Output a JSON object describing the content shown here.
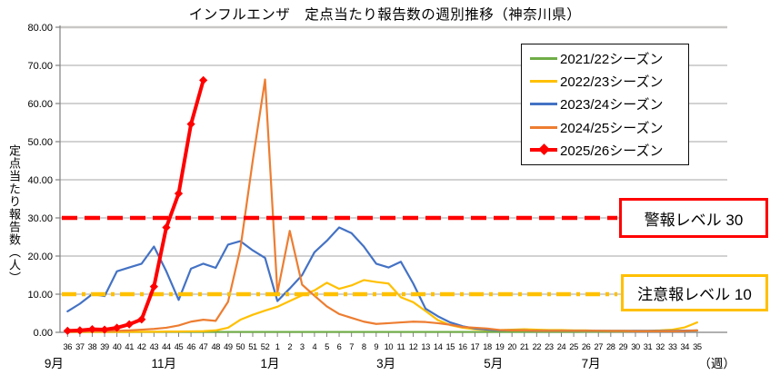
{
  "title": "インフルエンザ　定点当たり報告数の週別推移（神奈川県）",
  "y_axis_label": "定点当たり報告数（人）",
  "chart_data": {
    "type": "line",
    "title": "インフルエンザ　定点当たり報告数の週別推移（神奈川県）",
    "ylabel": "定点当たり報告数（人）",
    "xlabel": "（週）",
    "ylim": [
      0,
      80
    ],
    "y_tick_step": 10,
    "grid": "horizontal",
    "legend_position": "upper right",
    "y_tick_labels": [
      "0.00",
      "10.00",
      "20.00",
      "30.00",
      "40.00",
      "50.00",
      "60.00",
      "70.00",
      "80.00"
    ],
    "x_tick_labels": [
      "36",
      "37",
      "38",
      "39",
      "40",
      "41",
      "42",
      "43",
      "44",
      "45",
      "46",
      "47",
      "48",
      "49",
      "50",
      "51",
      "52",
      "1",
      "2",
      "3",
      "4",
      "5",
      "6",
      "7",
      "8",
      "9",
      "10",
      "11",
      "12",
      "13",
      "14",
      "15",
      "16",
      "17",
      "18",
      "19",
      "20",
      "21",
      "22",
      "23",
      "24",
      "25",
      "26",
      "27",
      "28",
      "29",
      "30",
      "31",
      "32",
      "33",
      "34",
      "35"
    ],
    "months": [
      {
        "label": "9月",
        "week_index": -1.1
      },
      {
        "label": "11月",
        "week_index": 7.8
      },
      {
        "label": "1月",
        "week_index": 16.4
      },
      {
        "label": "3月",
        "week_index": 25.8
      },
      {
        "label": "5月",
        "week_index": 34.5
      },
      {
        "label": "7月",
        "week_index": 42.4
      },
      {
        "label": "（週）",
        "week_index": 52.6
      }
    ],
    "series": [
      {
        "name": "2021/22シーズン",
        "color": "#70AD47",
        "marker": "none",
        "line_width": 2.2,
        "values": [
          0.1,
          0.1,
          0.1,
          0.1,
          0.1,
          0.1,
          0.1,
          0.1,
          0.1,
          0.1,
          0.1,
          0.1,
          0.1,
          0.1,
          0.1,
          0.1,
          0.1,
          0.1,
          0.1,
          0.1,
          0.1,
          0.1,
          0.1,
          0.1,
          0.1,
          0.1,
          0.1,
          0.1,
          0.1,
          0.1,
          0.1,
          0.1,
          0.1,
          0.1,
          0.1,
          0.1,
          0.1,
          0.1,
          0.1,
          0.1,
          0.1,
          0.1,
          0.15,
          0.15,
          0.2,
          0.2,
          0.25,
          0.3,
          0.3,
          0.35,
          0.4,
          0.45
        ]
      },
      {
        "name": "2022/23シーズン",
        "color": "#FFC000",
        "marker": "none",
        "line_width": 2.2,
        "values": [
          0.1,
          0.1,
          0.1,
          0.1,
          0.1,
          0.1,
          0.15,
          0.15,
          0.2,
          0.2,
          0.25,
          0.3,
          0.5,
          1.2,
          3.3,
          4.6,
          5.7,
          6.7,
          8.2,
          9.7,
          11,
          13,
          11.4,
          12.3,
          13.7,
          13.2,
          12.8,
          9.2,
          7.9,
          5.6,
          3.2,
          1.9,
          1.2,
          0.8,
          0.6,
          0.6,
          0.7,
          0.8,
          0.7,
          0.6,
          0.6,
          0.5,
          0.5,
          0.4,
          0.4,
          0.4,
          0.4,
          0.4,
          0.5,
          0.7,
          1.3,
          2.6
        ]
      },
      {
        "name": "2023/24シーズン",
        "color": "#4472C4",
        "marker": "none",
        "line_width": 2.2,
        "values": [
          5.5,
          7.5,
          10,
          9.5,
          16,
          17,
          18,
          22.5,
          16,
          8.5,
          16.7,
          18,
          16.9,
          23,
          23.9,
          21.5,
          19.5,
          8.2,
          11.5,
          15,
          21,
          24,
          27.5,
          26,
          22.5,
          18,
          17,
          18.5,
          12.8,
          6.2,
          4.2,
          2.6,
          1.6,
          1,
          0.7,
          0.5,
          0.5,
          0.5,
          0.4,
          0.4,
          0.4,
          0.4,
          0.4,
          0.4,
          0.4,
          0.4,
          0.4,
          0.4,
          0.4,
          0.4,
          0.45,
          0.5
        ]
      },
      {
        "name": "2024/25シーズン",
        "color": "#ED7D31",
        "marker": "none",
        "line_width": 2.2,
        "values": [
          0.2,
          0.2,
          0.3,
          0.3,
          0.4,
          0.5,
          0.7,
          0.9,
          1.2,
          1.8,
          2.8,
          3.3,
          3,
          8,
          22,
          45,
          66.3,
          10.4,
          26.6,
          12.5,
          9.6,
          6.8,
          4.8,
          3.8,
          2.8,
          2.2,
          2.4,
          2.6,
          2.8,
          2.7,
          2.4,
          2,
          1.4,
          1.2,
          1,
          0.6,
          0.5,
          0.5,
          0.4,
          0.4,
          0.4,
          0.4,
          0.4,
          0.4,
          0.35,
          0.35,
          0.3,
          0.3,
          0.3,
          0.3,
          0.35,
          0.5
        ]
      },
      {
        "name": "2025/26シーズン",
        "color": "#FF0000",
        "marker": "diamond",
        "line_width": 4,
        "values": [
          0.4,
          0.5,
          0.8,
          0.7,
          1.2,
          2.1,
          3.4,
          12,
          27.5,
          36.4,
          54.6,
          66.1
        ]
      }
    ],
    "reference_lines": [
      {
        "label": "警報レベル 30",
        "value": 30,
        "color": "#FF0000",
        "style": "dashed"
      },
      {
        "label": "注意報レベル 10",
        "value": 10,
        "color": "#FFC000",
        "style": "dash-dot"
      }
    ]
  }
}
